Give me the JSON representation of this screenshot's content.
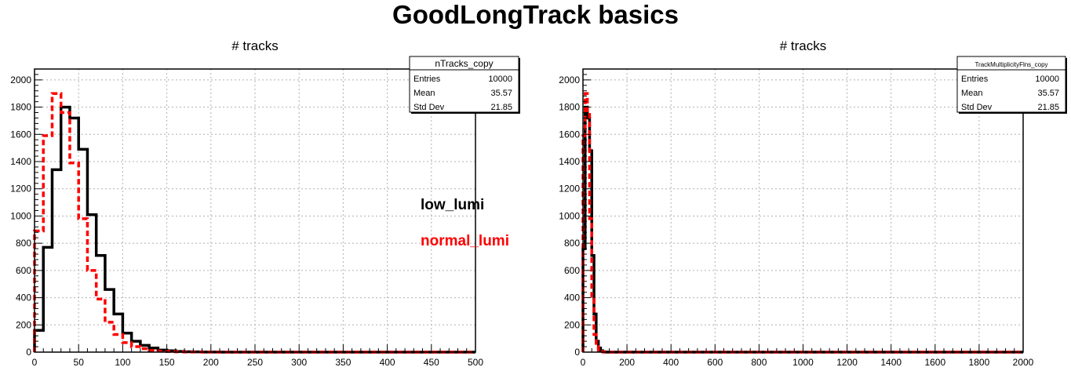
{
  "title": "GoodLongTrack basics",
  "colors": {
    "low_lumi": "#000000",
    "normal_lumi": "#ff0000"
  },
  "chart_data": [
    {
      "type": "histogram",
      "title": "# tracks",
      "xlim": [
        0,
        500
      ],
      "ylim": [
        0,
        2080
      ],
      "bin_width": 10,
      "x_ticks": [
        0,
        50,
        100,
        150,
        200,
        250,
        300,
        350,
        400,
        450,
        500
      ],
      "y_ticks": [
        0,
        200,
        400,
        600,
        800,
        1000,
        1200,
        1400,
        1600,
        1800,
        2000
      ],
      "grid": true,
      "stats_box": {
        "name": "nTracks_copy",
        "rows": [
          {
            "label": "Entries",
            "value": "10000"
          },
          {
            "label": "Mean",
            "value": "35.57"
          },
          {
            "label": "Std Dev",
            "value": "21.85"
          }
        ]
      },
      "legend": [
        "low_lumi",
        "normal_lumi"
      ],
      "series": [
        {
          "name": "low_lumi",
          "color": "#000000",
          "style": "solid",
          "values": [
            160,
            770,
            1340,
            1800,
            1720,
            1490,
            1010,
            710,
            460,
            280,
            140,
            80,
            50,
            30,
            15,
            10,
            5,
            3,
            2,
            1,
            1,
            0,
            0,
            0,
            0,
            0,
            0,
            0,
            0,
            0,
            0,
            0,
            0,
            0,
            0,
            0,
            0,
            0,
            0,
            0,
            0,
            0,
            0,
            0,
            0,
            0,
            0,
            0,
            0,
            0
          ]
        },
        {
          "name": "normal_lumi",
          "color": "#ff0000",
          "style": "dashed",
          "values": [
            890,
            1590,
            1900,
            1760,
            1390,
            980,
            600,
            390,
            220,
            130,
            70,
            40,
            25,
            12,
            7,
            4,
            2,
            1,
            1,
            0,
            0,
            0,
            0,
            0,
            0,
            0,
            0,
            0,
            0,
            0,
            0,
            0,
            0,
            0,
            0,
            0,
            0,
            0,
            0,
            0,
            0,
            0,
            0,
            0,
            0,
            0,
            0,
            0,
            0,
            0
          ]
        }
      ]
    },
    {
      "type": "histogram",
      "title": "# tracks",
      "xlim": [
        0,
        2000
      ],
      "ylim": [
        0,
        2080
      ],
      "bin_width": 10,
      "x_ticks": [
        0,
        200,
        400,
        600,
        800,
        1000,
        1200,
        1400,
        1600,
        1800,
        2000
      ],
      "y_ticks": [
        0,
        200,
        400,
        600,
        800,
        1000,
        1200,
        1400,
        1600,
        1800,
        2000
      ],
      "grid": true,
      "stats_box": {
        "name": "TrackMultiplicityFlns_copy",
        "rows": [
          {
            "label": "Entries",
            "value": "10000"
          },
          {
            "label": "Mean",
            "value": "35.57"
          },
          {
            "label": "Std Dev",
            "value": "21.85"
          }
        ]
      },
      "series": [
        {
          "name": "low_lumi",
          "color": "#000000",
          "style": "solid",
          "values": [
            760,
            1800,
            1720,
            1480,
            710,
            280,
            80,
            30,
            10,
            3,
            1,
            0
          ]
        },
        {
          "name": "normal_lumi",
          "color": "#ff0000",
          "style": "dashed",
          "values": [
            1590,
            1900,
            1760,
            980,
            390,
            130,
            40,
            12,
            4,
            1,
            0,
            0
          ]
        }
      ]
    }
  ]
}
